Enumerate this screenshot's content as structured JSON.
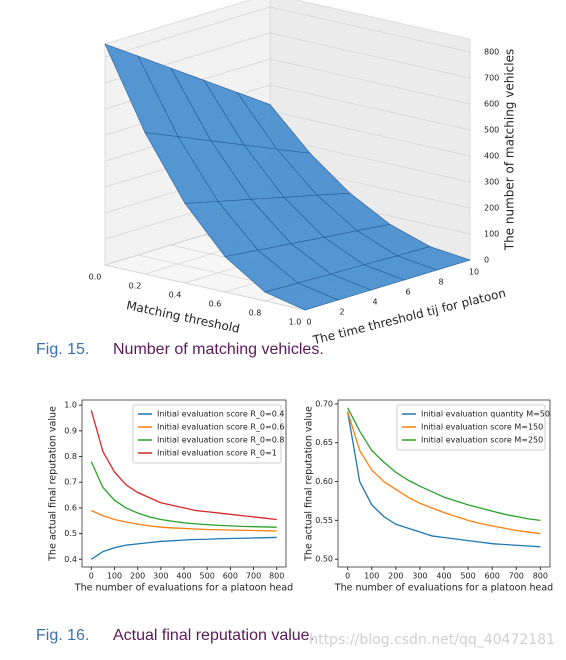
{
  "chart_data": [
    {
      "type": "surface",
      "xlabel": "Matching threshold",
      "ylabel": "The time threshold tij for platoon",
      "zlabel": "The number of matching vehicles",
      "x": [
        0,
        0.2,
        0.4,
        0.6,
        0.8,
        1.0
      ],
      "y": [
        0,
        2,
        4,
        6,
        8,
        10
      ],
      "z": [
        [
          850,
          765,
          680,
          595,
          510,
          425
        ],
        [
          544,
          490,
          435,
          381,
          326,
          272
        ],
        [
          306,
          275,
          245,
          214,
          184,
          153
        ],
        [
          136,
          122,
          109,
          95,
          82,
          68
        ],
        [
          34,
          31,
          27,
          24,
          20,
          17
        ],
        [
          0,
          0,
          0,
          0,
          0,
          0
        ]
      ],
      "xlim": [
        0,
        1
      ],
      "ylim": [
        0,
        10
      ],
      "zlim": [
        0,
        850
      ],
      "xticks": [
        {
          "value": 0,
          "label": "0.0"
        },
        0.2,
        0.4,
        0.6,
        0.8,
        {
          "value": 1,
          "label": "1.0"
        }
      ],
      "yticks": [
        0,
        2,
        4,
        6,
        8,
        10
      ],
      "zticks": [
        0,
        100,
        200,
        300,
        400,
        500,
        600,
        700,
        800
      ],
      "color": "#4a90d0",
      "grid": true
    },
    {
      "type": "line",
      "xlabel": "The number of evaluations for a platoon head",
      "ylabel": "The actual final reputation value",
      "x": [
        0,
        50,
        100,
        150,
        200,
        250,
        300,
        350,
        400,
        450,
        500,
        550,
        600,
        650,
        700,
        750,
        800
      ],
      "series": [
        {
          "name": "Initial evaluation score R_0=0.4",
          "color": "#1f77b4",
          "values": [
            0.4,
            0.43,
            0.445,
            0.455,
            0.46,
            0.465,
            0.47,
            0.472,
            0.475,
            0.477,
            0.478,
            0.48,
            0.481,
            0.482,
            0.483,
            0.484,
            0.485
          ]
        },
        {
          "name": "Initial evaluation score R_0=0.6",
          "color": "#ff7f0e",
          "values": [
            0.59,
            0.57,
            0.555,
            0.545,
            0.537,
            0.53,
            0.525,
            0.522,
            0.52,
            0.518,
            0.516,
            0.515,
            0.514,
            0.513,
            0.512,
            0.511,
            0.51
          ]
        },
        {
          "name": "Initial evaluation score R_0=0.8",
          "color": "#2ca02c",
          "values": [
            0.78,
            0.68,
            0.63,
            0.6,
            0.58,
            0.565,
            0.555,
            0.548,
            0.542,
            0.538,
            0.535,
            0.532,
            0.53,
            0.528,
            0.527,
            0.526,
            0.525
          ]
        },
        {
          "name": "Initial evaluation score R_0=1",
          "color": "#d62728",
          "values": [
            0.98,
            0.82,
            0.74,
            0.69,
            0.66,
            0.64,
            0.62,
            0.61,
            0.6,
            0.59,
            0.585,
            0.58,
            0.575,
            0.57,
            0.565,
            0.56,
            0.555
          ]
        }
      ],
      "xlim": [
        -40,
        840
      ],
      "ylim": [
        0.37,
        1.02
      ],
      "xticks": [
        0,
        100,
        200,
        300,
        400,
        500,
        600,
        700,
        800
      ],
      "yticks": [
        0.4,
        0.5,
        0.6,
        0.7,
        0.8,
        0.9,
        {
          "value": 1,
          "label": "1.0"
        }
      ],
      "legend": "upper right"
    },
    {
      "type": "line",
      "xlabel": "The number of evaluations for a platoon head",
      "ylabel": "The actual final reputation value",
      "x": [
        0,
        50,
        100,
        150,
        200,
        250,
        300,
        350,
        400,
        450,
        500,
        550,
        600,
        650,
        700,
        750,
        800
      ],
      "series": [
        {
          "name": "Initial evaluation quantity M=50",
          "color": "#1f77b4",
          "values": [
            0.69,
            0.6,
            0.57,
            0.555,
            0.545,
            0.54,
            0.535,
            0.53,
            0.528,
            0.526,
            0.524,
            0.522,
            0.52,
            0.519,
            0.518,
            0.517,
            0.516
          ]
        },
        {
          "name": "Initial evaluation score M=150",
          "color": "#ff7f0e",
          "values": [
            0.69,
            0.64,
            0.615,
            0.6,
            0.59,
            0.58,
            0.572,
            0.566,
            0.56,
            0.555,
            0.55,
            0.546,
            0.543,
            0.54,
            0.537,
            0.535,
            0.533
          ]
        },
        {
          "name": "Initial evaluation score M=250",
          "color": "#2ca02c",
          "values": [
            0.695,
            0.665,
            0.64,
            0.625,
            0.612,
            0.602,
            0.594,
            0.587,
            0.58,
            0.575,
            0.57,
            0.566,
            0.562,
            0.558,
            0.555,
            0.552,
            0.55
          ]
        }
      ],
      "xlim": [
        -40,
        840
      ],
      "ylim": [
        0.49,
        0.705
      ],
      "xticks": [
        0,
        100,
        200,
        300,
        400,
        500,
        600,
        700,
        800
      ],
      "yticks": [
        {
          "value": 0.5,
          "label": "0.50"
        },
        {
          "value": 0.55,
          "label": "0.55"
        },
        {
          "value": 0.6,
          "label": "0.60"
        },
        {
          "value": 0.65,
          "label": "0.65"
        },
        {
          "value": 0.7,
          "label": "0.70"
        }
      ],
      "legend": "upper right"
    }
  ],
  "captions": [
    {
      "label": "Fig. 15.",
      "text": "Number of matching vehicles."
    },
    {
      "label": "Fig. 16.",
      "text": "Actual final reputation value."
    }
  ],
  "watermark": "https://blog.csdn.net/qq_40472181"
}
